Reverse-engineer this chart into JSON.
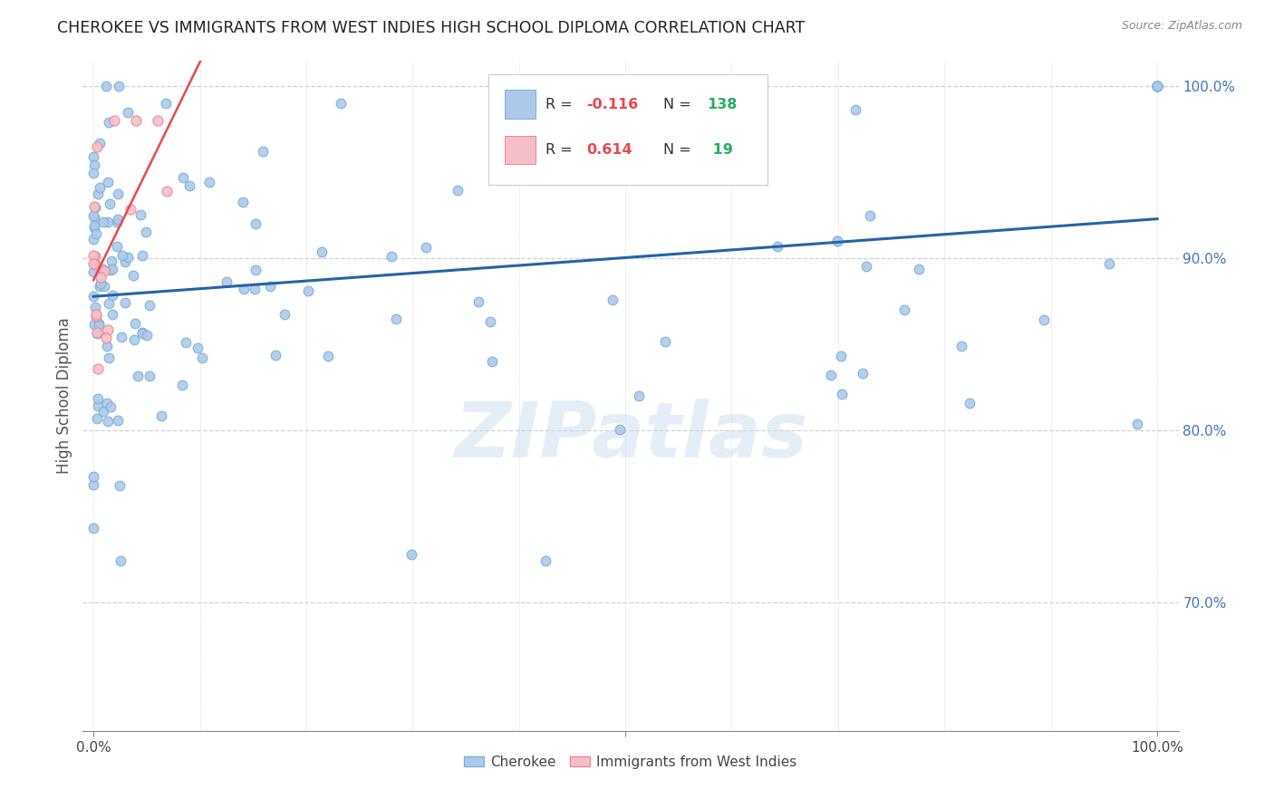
{
  "title": "CHEROKEE VS IMMIGRANTS FROM WEST INDIES HIGH SCHOOL DIPLOMA CORRELATION CHART",
  "source": "Source: ZipAtlas.com",
  "ylabel": "High School Diploma",
  "legend_label_blue": "Cherokee",
  "legend_label_pink": "Immigrants from West Indies",
  "r_blue": "-0.116",
  "n_blue": "138",
  "r_pink": "0.614",
  "n_pink": "19",
  "right_ytick_labels": [
    "100.0%",
    "90.0%",
    "80.0%",
    "70.0%"
  ],
  "right_ytick_positions": [
    1.0,
    0.9,
    0.8,
    0.7
  ],
  "watermark": "ZIPatlas",
  "background_color": "#ffffff",
  "scatter_blue_color": "#adc9e9",
  "scatter_blue_edge": "#7bafd4",
  "scatter_pink_color": "#f5bfc8",
  "scatter_pink_edge": "#e88898",
  "line_blue_color": "#2563a8",
  "line_pink_color": "#e8484f",
  "grid_color": "#d0d0d0",
  "title_color": "#222222",
  "right_tick_color": "#4472c4",
  "r_value_color": "#e8484f",
  "n_value_color": "#27ae60",
  "legend_box_color": "#f0f0f0",
  "legend_border_color": "#bbbbbb"
}
